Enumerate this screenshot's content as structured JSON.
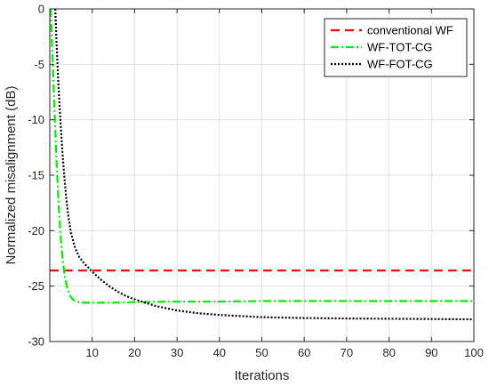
{
  "chart_data": {
    "type": "line",
    "title": "",
    "xlabel": "Iterations",
    "ylabel": "Normalized misalignment (dB)",
    "xlim": [
      0,
      100
    ],
    "ylim": [
      -30,
      0
    ],
    "xticks": [
      10,
      20,
      30,
      40,
      50,
      60,
      70,
      80,
      90,
      100
    ],
    "yticks": [
      0,
      -5,
      -10,
      -15,
      -20,
      -25,
      -30
    ],
    "grid": true,
    "legend_position": "top-right",
    "series": [
      {
        "name": "conventional WF",
        "color": "#ff0000",
        "style": "dashed",
        "x": [
          0,
          100
        ],
        "y": [
          -23.6,
          -23.6
        ]
      },
      {
        "name": "WF-TOT-CG",
        "color": "#00ee00",
        "style": "dash-dot",
        "x": [
          0.2,
          0.6,
          1,
          1.5,
          2,
          2.5,
          3,
          3.5,
          4,
          4.5,
          5,
          5.5,
          6,
          7,
          8,
          9,
          10,
          12,
          15,
          20,
          30,
          40,
          50,
          60,
          70,
          80,
          90,
          100
        ],
        "y": [
          0,
          -4,
          -8,
          -13,
          -17,
          -20.2,
          -22.5,
          -24,
          -25,
          -25.6,
          -26,
          -26.2,
          -26.35,
          -26.45,
          -26.5,
          -26.5,
          -26.5,
          -26.5,
          -26.5,
          -26.45,
          -26.4,
          -26.4,
          -26.35,
          -26.35,
          -26.35,
          -26.35,
          -26.35,
          -26.35
        ]
      },
      {
        "name": "WF-FOT-CG",
        "color": "#000000",
        "style": "dotted",
        "x": [
          1.3,
          1.6,
          2,
          2.5,
          3,
          3.5,
          4,
          4.5,
          5,
          6,
          7,
          8,
          9,
          10,
          12,
          14,
          16,
          18,
          20,
          25,
          30,
          35,
          40,
          50,
          60,
          70,
          80,
          90,
          100
        ],
        "y": [
          0,
          -3,
          -6.5,
          -10,
          -13,
          -15.5,
          -17.5,
          -19,
          -20.2,
          -21.6,
          -22.4,
          -22.9,
          -23.3,
          -23.7,
          -24.4,
          -25,
          -25.5,
          -25.9,
          -26.2,
          -26.8,
          -27.2,
          -27.45,
          -27.6,
          -27.8,
          -27.88,
          -27.92,
          -27.95,
          -27.97,
          -28
        ]
      }
    ]
  }
}
